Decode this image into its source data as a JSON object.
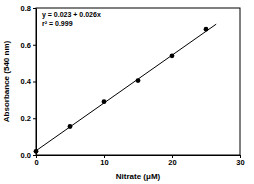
{
  "chart_data": {
    "type": "scatter",
    "xlabel": "Nitrate (μM)",
    "ylabel": "Absorbance (540 nm)",
    "annotations": [
      "y = 0.023 + 0.026x",
      "r² = 0.999"
    ],
    "xlim": [
      0,
      30
    ],
    "ylim": [
      0,
      0.8
    ],
    "xticks": [
      0,
      10,
      20,
      30
    ],
    "yticks": [
      {
        "value": 0,
        "label": "0.0"
      },
      0.2,
      0.4,
      0.6,
      0.8
    ],
    "series": [
      {
        "type": "scatter",
        "marker": "circle",
        "color": "#000000",
        "x": [
          0,
          5,
          10,
          15,
          20,
          25
        ],
        "values": [
          0.02,
          0.155,
          0.29,
          0.405,
          0.54,
          0.685
        ]
      },
      {
        "type": "line",
        "line_style": "solid",
        "color": "#000000",
        "x": [
          0,
          26.5
        ],
        "values": [
          0.023,
          0.712
        ]
      }
    ]
  }
}
